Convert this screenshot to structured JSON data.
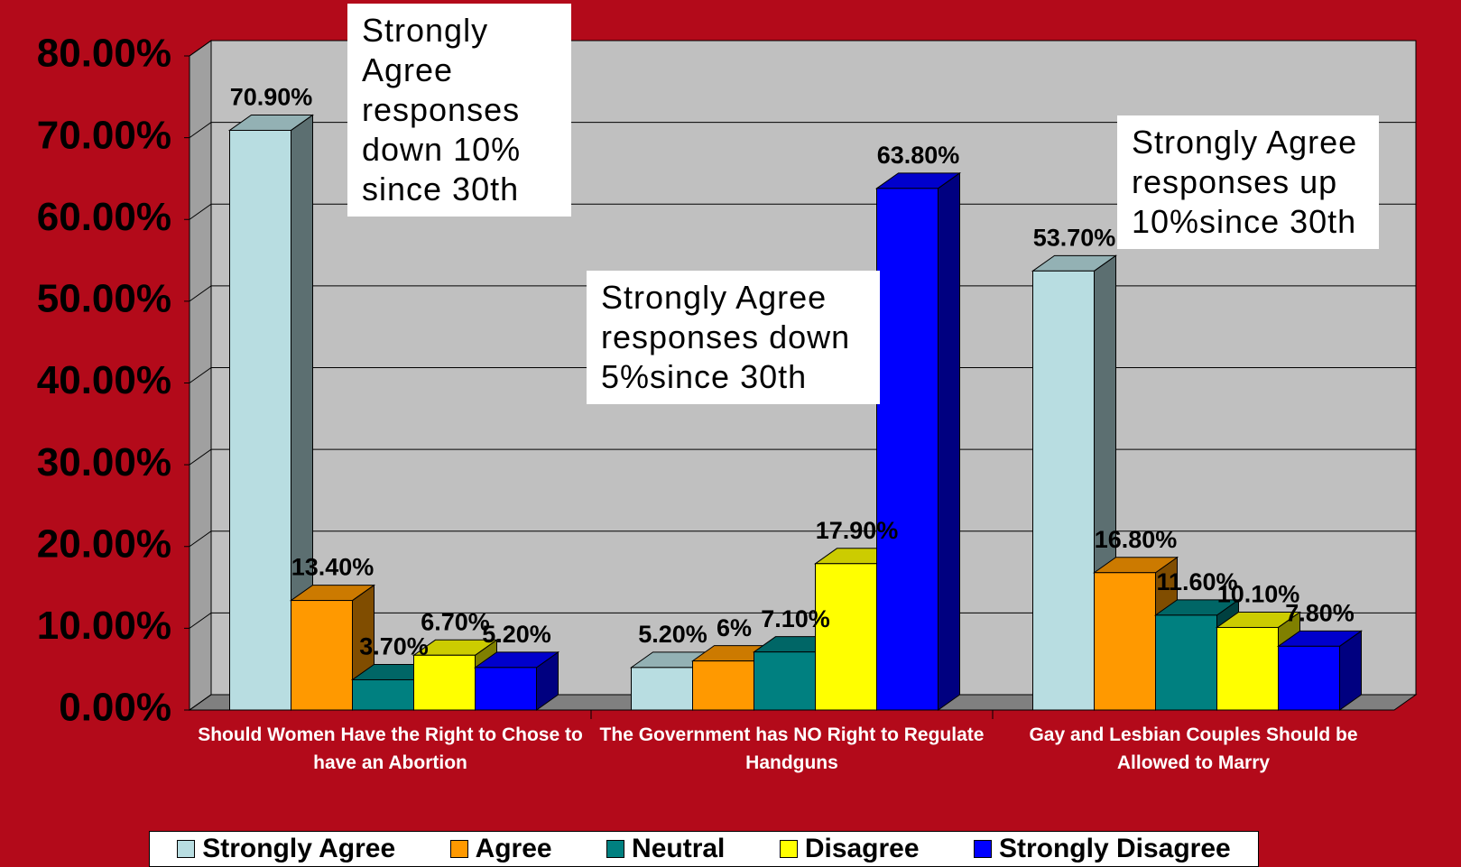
{
  "chart_data": {
    "type": "bar3d",
    "categories": [
      "Should Women Have the Right to Chose to have an Abortion",
      "The Government has NO Right to Regulate Handguns",
      "Gay and Lesbian Couples Should be Allowed to Marry"
    ],
    "series": [
      {
        "name": "Strongly Agree",
        "color": "#b8dde1",
        "values": [
          70.9,
          5.2,
          53.7
        ],
        "value_labels": [
          "70.90%",
          "5.20%",
          "53.70%"
        ]
      },
      {
        "name": "Agree",
        "color": "#ff9900",
        "values": [
          13.4,
          6,
          16.8
        ],
        "value_labels": [
          "13.40%",
          "6%",
          "16.80%"
        ]
      },
      {
        "name": "Neutral",
        "color": "#008080",
        "values": [
          3.7,
          7.1,
          11.6
        ],
        "value_labels": [
          "3.70%",
          "7.10%",
          "11.60%"
        ]
      },
      {
        "name": "Disagree",
        "color": "#ffff00",
        "values": [
          6.7,
          17.9,
          10.1
        ],
        "value_labels": [
          "6.70%",
          "17.90%",
          "10.10%"
        ]
      },
      {
        "name": "Strongly Disagree",
        "color": "#0000ff",
        "values": [
          5.2,
          63.8,
          7.8
        ],
        "value_labels": [
          "5.20%",
          "63.80%",
          "7.80%"
        ]
      }
    ],
    "ylim": [
      0,
      80
    ],
    "yticks": [
      {
        "value": 0,
        "label": "0.00%"
      },
      {
        "value": 10,
        "label": "10.00%"
      },
      {
        "value": 20,
        "label": "20.00%"
      },
      {
        "value": 30,
        "label": "30.00%"
      },
      {
        "value": 40,
        "label": "40.00%"
      },
      {
        "value": 50,
        "label": "50.00%"
      },
      {
        "value": 60,
        "label": "60.00%"
      },
      {
        "value": 70,
        "label": "70.00%"
      },
      {
        "value": 80,
        "label": "80.00%"
      }
    ],
    "grid": true,
    "annotations": [
      "Strongly Agree responses down 10% since 30th",
      "Strongly Agree responses down 5%since 30th",
      "Strongly Agree responses up 10%since 30th"
    ]
  }
}
